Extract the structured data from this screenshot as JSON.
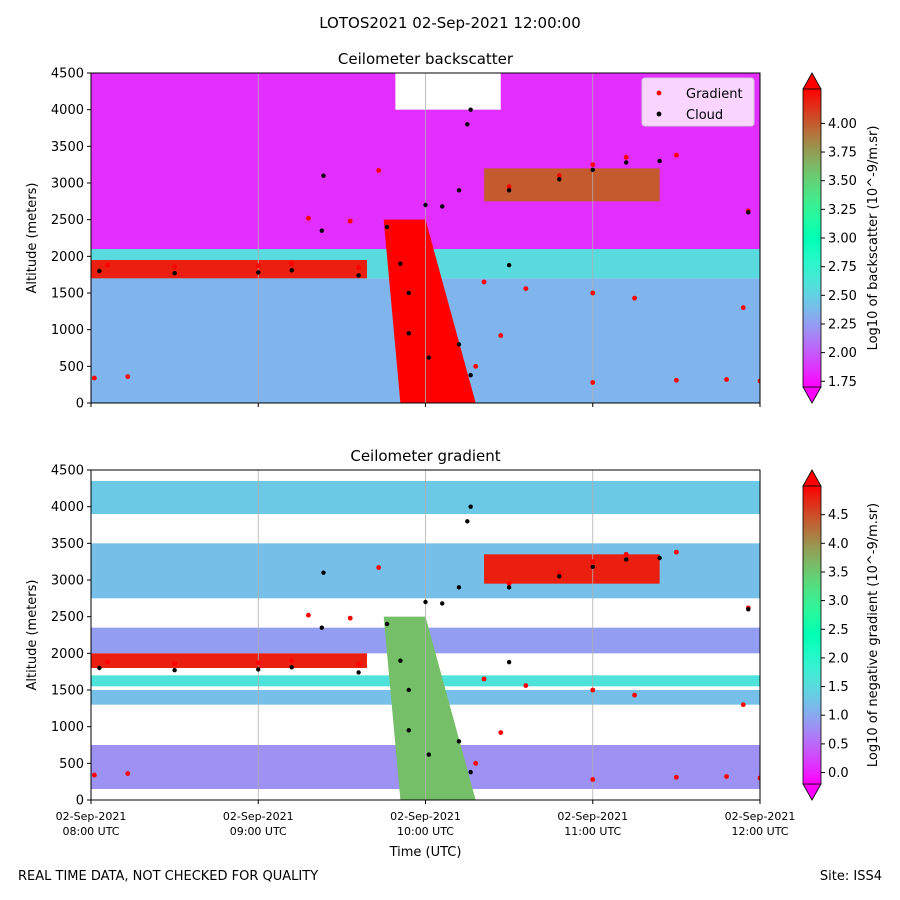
{
  "figure": {
    "suptitle": "LOTOS2021 02-Sep-2021 12:00:00",
    "footer_left": "REAL TIME DATA, NOT CHECKED FOR QUALITY",
    "footer_right": "Site: ISS4"
  },
  "chart_data": [
    {
      "type": "heatmap",
      "title": "Ceilometer backscatter",
      "ylabel": "Altitude (meters)",
      "xlabel": "",
      "ylim": [
        0,
        4500
      ],
      "y_ticks": [
        0,
        500,
        1000,
        1500,
        2000,
        2500,
        3000,
        3500,
        4000,
        4500
      ],
      "x_range_hours": [
        8,
        12
      ],
      "x_ticks_hours": [
        8,
        9,
        10,
        11,
        12
      ],
      "x_tick_labels": [],
      "grid": "vertical",
      "colorbar": {
        "label": "Log10 of backscatter (10^-9/m.sr)",
        "ticks": [
          1.75,
          2.0,
          2.25,
          2.5,
          2.75,
          3.0,
          3.25,
          3.5,
          3.75,
          4.0
        ],
        "tick_labels": [
          "1.75",
          "2.00",
          "2.25",
          "2.50",
          "2.75",
          "3.00",
          "3.25",
          "3.50",
          "3.75",
          "4.00"
        ],
        "range": [
          1.7,
          4.3
        ],
        "colormap": "rainbow"
      },
      "legend": {
        "placement": "top-right",
        "entries": [
          {
            "name": "Gradient",
            "color": "#ff0000"
          },
          {
            "name": "Cloud",
            "color": "#000000"
          }
        ]
      },
      "background_levels": [
        {
          "y0": 0,
          "y1": 1700,
          "value": 2.35
        },
        {
          "y0": 1700,
          "y1": 2100,
          "value": 2.55
        },
        {
          "y0": 2100,
          "y1": 4500,
          "value": 1.85
        }
      ],
      "features": [
        {
          "name": "boundary-layer-top",
          "t0": 8.0,
          "t1": 9.65,
          "alt0": 1700,
          "alt1": 1950,
          "value": 4.2
        },
        {
          "name": "plume",
          "points_hours_alt": [
            [
              9.75,
              2500
            ],
            [
              10.0,
              2500
            ],
            [
              10.3,
              0
            ],
            [
              9.85,
              0
            ]
          ],
          "value": 4.3
        },
        {
          "name": "upper-layer",
          "t0": 10.35,
          "t1": 11.4,
          "alt0": 2750,
          "alt1": 3200,
          "value": 4.0
        },
        {
          "name": "clear-gap",
          "t0": 9.82,
          "t1": 10.45,
          "alt0": 4000,
          "alt1": 4500,
          "value": null
        }
      ],
      "gradient_series": [
        {
          "hour": 8.02,
          "alt": 340
        },
        {
          "hour": 8.22,
          "alt": 360
        },
        {
          "hour": 8.1,
          "alt": 1880
        },
        {
          "hour": 8.5,
          "alt": 1860
        },
        {
          "hour": 9.0,
          "alt": 1870
        },
        {
          "hour": 9.2,
          "alt": 1900
        },
        {
          "hour": 9.6,
          "alt": 1850
        },
        {
          "hour": 9.3,
          "alt": 2520
        },
        {
          "hour": 9.55,
          "alt": 2480
        },
        {
          "hour": 9.72,
          "alt": 3170
        },
        {
          "hour": 10.35,
          "alt": 1650
        },
        {
          "hour": 10.6,
          "alt": 1560
        },
        {
          "hour": 11.0,
          "alt": 1500
        },
        {
          "hour": 11.25,
          "alt": 1430
        },
        {
          "hour": 10.3,
          "alt": 500
        },
        {
          "hour": 10.45,
          "alt": 920
        },
        {
          "hour": 11.0,
          "alt": 280
        },
        {
          "hour": 11.5,
          "alt": 310
        },
        {
          "hour": 11.8,
          "alt": 320
        },
        {
          "hour": 12.0,
          "alt": 300
        },
        {
          "hour": 10.5,
          "alt": 2950
        },
        {
          "hour": 10.8,
          "alt": 3100
        },
        {
          "hour": 11.0,
          "alt": 3250
        },
        {
          "hour": 11.2,
          "alt": 3350
        },
        {
          "hour": 11.5,
          "alt": 3380
        },
        {
          "hour": 11.9,
          "alt": 1300
        },
        {
          "hour": 11.93,
          "alt": 2620
        }
      ],
      "cloud_series": [
        {
          "hour": 8.05,
          "alt": 1800
        },
        {
          "hour": 8.5,
          "alt": 1770
        },
        {
          "hour": 9.0,
          "alt": 1780
        },
        {
          "hour": 9.2,
          "alt": 1810
        },
        {
          "hour": 9.6,
          "alt": 1740
        },
        {
          "hour": 9.77,
          "alt": 2400
        },
        {
          "hour": 9.85,
          "alt": 1900
        },
        {
          "hour": 9.9,
          "alt": 1500
        },
        {
          "hour": 9.9,
          "alt": 950
        },
        {
          "hour": 10.0,
          "alt": 2700
        },
        {
          "hour": 10.1,
          "alt": 2680
        },
        {
          "hour": 10.2,
          "alt": 2900
        },
        {
          "hour": 10.25,
          "alt": 3800
        },
        {
          "hour": 10.27,
          "alt": 4000
        },
        {
          "hour": 10.2,
          "alt": 800
        },
        {
          "hour": 10.27,
          "alt": 380
        },
        {
          "hour": 10.02,
          "alt": 620
        },
        {
          "hour": 10.5,
          "alt": 2900
        },
        {
          "hour": 10.8,
          "alt": 3050
        },
        {
          "hour": 11.0,
          "alt": 3180
        },
        {
          "hour": 11.2,
          "alt": 3280
        },
        {
          "hour": 11.4,
          "alt": 3300
        },
        {
          "hour": 9.39,
          "alt": 3100
        },
        {
          "hour": 9.38,
          "alt": 2350
        },
        {
          "hour": 10.5,
          "alt": 1880
        },
        {
          "hour": 11.93,
          "alt": 2600
        }
      ]
    },
    {
      "type": "heatmap",
      "title": "Ceilometer gradient",
      "ylabel": "Altitude (meters)",
      "xlabel": "Time (UTC)",
      "ylim": [
        0,
        4500
      ],
      "y_ticks": [
        0,
        500,
        1000,
        1500,
        2000,
        2500,
        3000,
        3500,
        4000,
        4500
      ],
      "x_range_hours": [
        8,
        12
      ],
      "x_ticks_hours": [
        8,
        9,
        10,
        11,
        12
      ],
      "x_tick_labels": [
        [
          "02-Sep-2021",
          "08:00 UTC"
        ],
        [
          "02-Sep-2021",
          "09:00 UTC"
        ],
        [
          "02-Sep-2021",
          "10:00 UTC"
        ],
        [
          "02-Sep-2021",
          "11:00 UTC"
        ],
        [
          "02-Sep-2021",
          "12:00 UTC"
        ]
      ],
      "grid": "vertical",
      "colorbar": {
        "label": "Log10 of negative gradient (10^-9/m.sr)",
        "ticks": [
          0.0,
          0.5,
          1.0,
          1.5,
          2.0,
          2.5,
          3.0,
          3.5,
          4.0,
          4.5
        ],
        "tick_labels": [
          "0.0",
          "0.5",
          "1.0",
          "1.5",
          "2.0",
          "2.5",
          "3.0",
          "3.5",
          "4.0",
          "4.5"
        ],
        "range": [
          -0.2,
          5.0
        ],
        "colormap": "rainbow"
      },
      "legend": null,
      "background_levels": [
        {
          "y0": 150,
          "y1": 750,
          "value": 0.8
        },
        {
          "y0": 1300,
          "y1": 1500,
          "value": 1.2
        },
        {
          "y0": 1550,
          "y1": 1700,
          "value": 1.6
        },
        {
          "y0": 2000,
          "y1": 2350,
          "value": 0.9
        },
        {
          "y0": 2750,
          "y1": 3500,
          "value": 1.2
        },
        {
          "y0": 3900,
          "y1": 4350,
          "value": 1.3
        }
      ],
      "features": [
        {
          "name": "boundary-layer-top",
          "t0": 8.0,
          "t1": 9.65,
          "alt0": 1800,
          "alt1": 2000,
          "value": 4.8
        },
        {
          "name": "plume",
          "points_hours_alt": [
            [
              9.75,
              2500
            ],
            [
              10.0,
              2500
            ],
            [
              10.3,
              0
            ],
            [
              9.85,
              0
            ]
          ],
          "value": 3.6
        },
        {
          "name": "upper-layer",
          "t0": 10.35,
          "t1": 11.4,
          "alt0": 2950,
          "alt1": 3350,
          "value": 4.8
        }
      ],
      "gradient_series": [
        {
          "hour": 8.02,
          "alt": 340
        },
        {
          "hour": 8.22,
          "alt": 360
        },
        {
          "hour": 8.1,
          "alt": 1880
        },
        {
          "hour": 8.5,
          "alt": 1860
        },
        {
          "hour": 9.0,
          "alt": 1870
        },
        {
          "hour": 9.2,
          "alt": 1900
        },
        {
          "hour": 9.6,
          "alt": 1850
        },
        {
          "hour": 9.3,
          "alt": 2520
        },
        {
          "hour": 9.55,
          "alt": 2480
        },
        {
          "hour": 9.72,
          "alt": 3170
        },
        {
          "hour": 10.35,
          "alt": 1650
        },
        {
          "hour": 10.6,
          "alt": 1560
        },
        {
          "hour": 11.0,
          "alt": 1500
        },
        {
          "hour": 11.25,
          "alt": 1430
        },
        {
          "hour": 10.3,
          "alt": 500
        },
        {
          "hour": 10.45,
          "alt": 920
        },
        {
          "hour": 11.0,
          "alt": 280
        },
        {
          "hour": 11.5,
          "alt": 310
        },
        {
          "hour": 11.8,
          "alt": 320
        },
        {
          "hour": 12.0,
          "alt": 300
        },
        {
          "hour": 10.5,
          "alt": 2950
        },
        {
          "hour": 10.8,
          "alt": 3100
        },
        {
          "hour": 11.0,
          "alt": 3250
        },
        {
          "hour": 11.2,
          "alt": 3350
        },
        {
          "hour": 11.5,
          "alt": 3380
        },
        {
          "hour": 11.9,
          "alt": 1300
        },
        {
          "hour": 11.93,
          "alt": 2620
        }
      ],
      "cloud_series": [
        {
          "hour": 8.05,
          "alt": 1800
        },
        {
          "hour": 8.5,
          "alt": 1770
        },
        {
          "hour": 9.0,
          "alt": 1780
        },
        {
          "hour": 9.2,
          "alt": 1810
        },
        {
          "hour": 9.6,
          "alt": 1740
        },
        {
          "hour": 9.77,
          "alt": 2400
        },
        {
          "hour": 9.85,
          "alt": 1900
        },
        {
          "hour": 9.9,
          "alt": 1500
        },
        {
          "hour": 9.9,
          "alt": 950
        },
        {
          "hour": 10.0,
          "alt": 2700
        },
        {
          "hour": 10.1,
          "alt": 2680
        },
        {
          "hour": 10.2,
          "alt": 2900
        },
        {
          "hour": 10.25,
          "alt": 3800
        },
        {
          "hour": 10.27,
          "alt": 4000
        },
        {
          "hour": 10.2,
          "alt": 800
        },
        {
          "hour": 10.27,
          "alt": 380
        },
        {
          "hour": 10.02,
          "alt": 620
        },
        {
          "hour": 10.5,
          "alt": 2900
        },
        {
          "hour": 10.8,
          "alt": 3050
        },
        {
          "hour": 11.0,
          "alt": 3180
        },
        {
          "hour": 11.2,
          "alt": 3280
        },
        {
          "hour": 11.4,
          "alt": 3300
        },
        {
          "hour": 9.39,
          "alt": 3100
        },
        {
          "hour": 9.38,
          "alt": 2350
        },
        {
          "hour": 10.5,
          "alt": 1880
        },
        {
          "hour": 11.93,
          "alt": 2600
        }
      ]
    }
  ]
}
